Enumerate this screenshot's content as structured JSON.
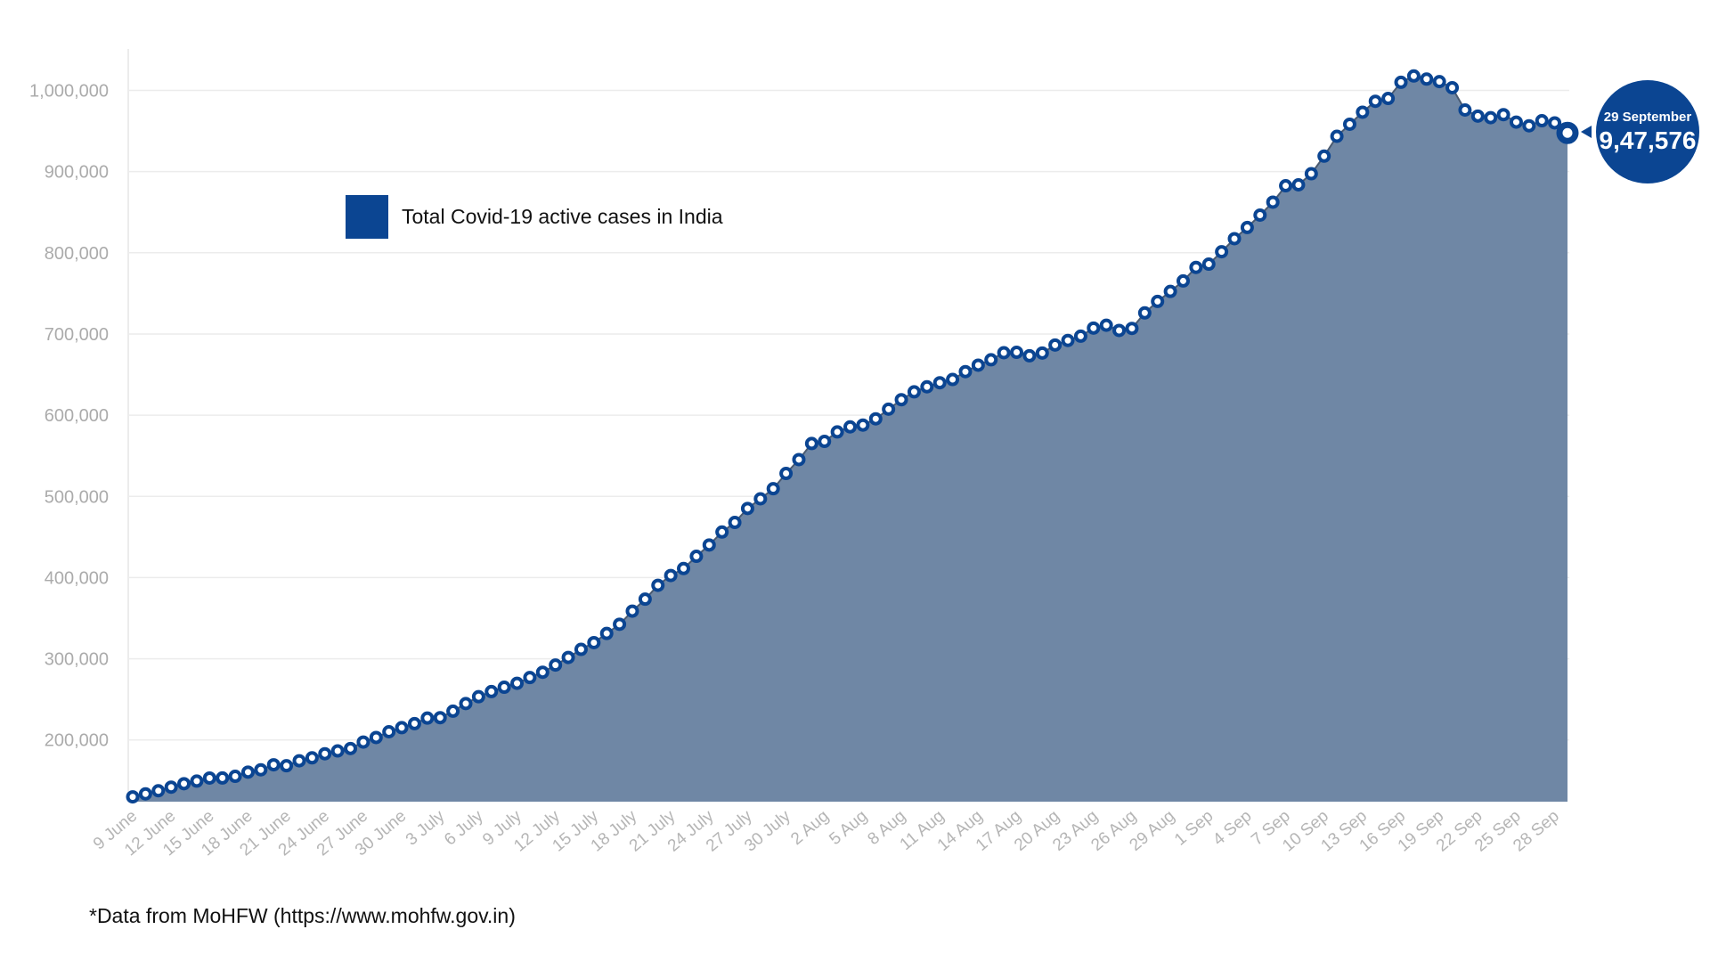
{
  "chart_data": {
    "type": "area",
    "title": "",
    "xlabel": "",
    "ylabel": "",
    "ylim": [
      124000,
      1051000
    ],
    "grid": true,
    "legend_position": "top-left",
    "y_ticks": [
      200000,
      300000,
      400000,
      500000,
      600000,
      700000,
      800000,
      900000,
      1000000
    ],
    "y_tick_labels": [
      "200,000",
      "300,000",
      "400,000",
      "500,000",
      "600,000",
      "700,000",
      "800,000",
      "900,000",
      "1,000,000"
    ],
    "x_tick_labels": [
      "9 June",
      "12 June",
      "15 June",
      "18 June",
      "21 June",
      "24 June",
      "27 June",
      "30 June",
      "3 July",
      "6 July",
      "9 July",
      "12 July",
      "15 July",
      "18 July",
      "21 July",
      "24 July",
      "27 July",
      "30 July",
      "2 Aug",
      "5 Aug",
      "8 Aug",
      "11 Aug",
      "14 Aug",
      "17 Aug",
      "20 Aug",
      "23 Aug",
      "26 Aug",
      "29 Aug",
      "1 Sep",
      "4 Sep",
      "7 Sep",
      "10 Sep",
      "13 Sep",
      "16 Sep",
      "19 Sep",
      "22 Sep",
      "25 Sep",
      "28 Sep"
    ],
    "x_tick_every_days": 3,
    "series": [
      {
        "name": "Total Covid-19 active cases in India",
        "color": "#0b4592",
        "fill": "#6f87a5",
        "start_date": "9 June",
        "end_date": "29 September",
        "values": [
          129917,
          133632,
          137448,
          141842,
          146137,
          149348,
          153106,
          153178,
          155227,
          160384,
          163248,
          169451,
          168269,
          174387,
          178014,
          183022,
          186514,
          189463,
          197387,
          203051,
          210120,
          215125,
          220114,
          226947,
          227439,
          235433,
          244814,
          253287,
          259557,
          264944,
          269789,
          276882,
          283407,
          292258,
          301609,
          311565,
          319840,
          331146,
          342473,
          358692,
          373379,
          390459,
          402529,
          411133,
          426167,
          440135,
          456071,
          467882,
          485114,
          496988,
          509447,
          528242,
          545318,
          565103,
          567730,
          579357,
          585587,
          587825,
          595501,
          607384,
          619088,
          628747,
          634945,
          639929,
          643948,
          653622,
          661595,
          668220,
          676900,
          677444,
          673166,
          676514,
          686395,
          692028,
          697330,
          707267,
          710771,
          704348,
          706851,
          725991,
          740096,
          752424,
          765302,
          781975,
          785996,
          801282,
          817350,
          831124,
          846395,
          862320,
          882542,
          883697,
          897394,
          919018,
          943480,
          958316,
          973175,
          986598,
          990061,
          1009976,
          1017754,
          1013964,
          1010824,
          1003299,
          975861,
          968377,
          966382,
          970116,
          960969,
          956402,
          962640,
          960000,
          947576
        ]
      }
    ],
    "callout": {
      "date": "29 September",
      "value": "9,47,576"
    },
    "footnote": "*Data from MoHFW (https://www.mohfw.gov.in)"
  }
}
